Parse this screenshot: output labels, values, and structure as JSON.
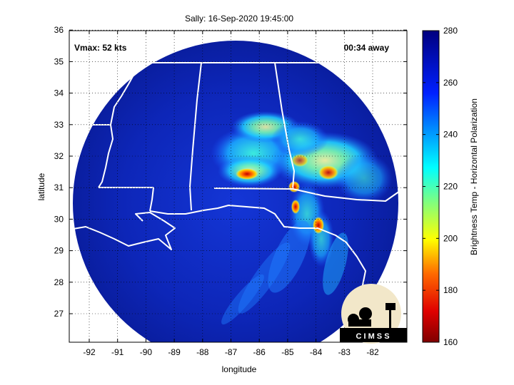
{
  "title": "Sally: 16-Sep-2020 19:45:00",
  "vmax_label": "Vmax: 52 kts",
  "time_away_label": "00:34 away",
  "xlabel": "longitude",
  "ylabel": "latitude",
  "colorbar_label": "Brightness Temp - Horizontal Polarization",
  "logo_text": "C I M S S",
  "x_ticks": [
    "-92",
    "-91",
    "-90",
    "-89",
    "-88",
    "-87",
    "-86",
    "-85",
    "-84",
    "-83",
    "-82"
  ],
  "y_ticks": [
    "27",
    "28",
    "29",
    "30",
    "31",
    "32",
    "33",
    "34",
    "35",
    "36"
  ],
  "colorbar_ticks": [
    "160",
    "180",
    "200",
    "220",
    "240",
    "260",
    "280"
  ],
  "colors": {
    "background_outside_swath": "#ffffff",
    "swath_base": "#0a1fa8",
    "coastline": "#ffffff",
    "grid": "#000000"
  }
}
